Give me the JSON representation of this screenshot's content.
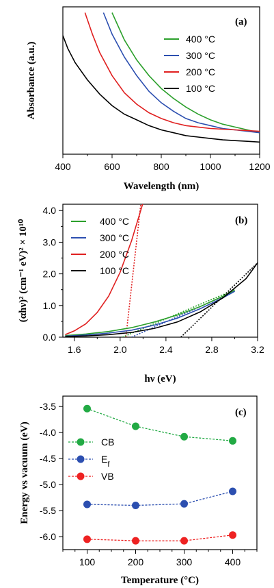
{
  "chart_data": [
    {
      "panel": "(a)",
      "type": "line",
      "xlabel": "Wavelength (nm)",
      "ylabel": "Absorbance (a.u.)",
      "xlim": [
        400,
        1200
      ],
      "ylim": [
        0,
        1
      ],
      "xticks": [
        "400",
        "600",
        "800",
        "1000",
        "1200"
      ],
      "legend_position": "top-right",
      "series": [
        {
          "name": "400 °C",
          "color": "#2ca02c",
          "x": [
            600,
            650,
            700,
            750,
            800,
            850,
            900,
            950,
            1000,
            1050,
            1100,
            1150,
            1200
          ],
          "y": [
            0.99,
            0.8,
            0.66,
            0.55,
            0.46,
            0.39,
            0.33,
            0.28,
            0.24,
            0.21,
            0.19,
            0.17,
            0.15
          ]
        },
        {
          "name": "300 °C",
          "color": "#2c4fb0",
          "x": [
            565,
            600,
            650,
            700,
            750,
            800,
            850,
            900,
            950,
            1000,
            1050,
            1100,
            1150,
            1200
          ],
          "y": [
            0.99,
            0.84,
            0.68,
            0.55,
            0.44,
            0.36,
            0.3,
            0.25,
            0.22,
            0.2,
            0.18,
            0.17,
            0.16,
            0.15
          ]
        },
        {
          "name": "200 °C",
          "color": "#e02020",
          "x": [
            490,
            520,
            550,
            600,
            650,
            700,
            750,
            800,
            850,
            900,
            950,
            1000,
            1050,
            1100,
            1150,
            1200
          ],
          "y": [
            0.99,
            0.84,
            0.71,
            0.55,
            0.43,
            0.35,
            0.29,
            0.25,
            0.22,
            0.2,
            0.19,
            0.18,
            0.175,
            0.17,
            0.165,
            0.16
          ]
        },
        {
          "name": "100 °C",
          "color": "#000000",
          "x": [
            400,
            420,
            450,
            500,
            550,
            600,
            650,
            700,
            750,
            800,
            850,
            900,
            950,
            1000,
            1050,
            1100,
            1150,
            1200
          ],
          "y": [
            0.83,
            0.74,
            0.64,
            0.52,
            0.42,
            0.34,
            0.28,
            0.24,
            0.2,
            0.17,
            0.15,
            0.13,
            0.12,
            0.11,
            0.1,
            0.095,
            0.09,
            0.085
          ]
        }
      ]
    },
    {
      "panel": "(b)",
      "type": "line",
      "xlabel": "hν (eV)",
      "ylabel": "(αhν)² (cm⁻¹ eV)² × 10¹⁰",
      "xlim": [
        1.5,
        3.2
      ],
      "ylim": [
        0,
        4.2
      ],
      "xticks": [
        "1.6",
        "2.0",
        "2.4",
        "2.8",
        "3.2"
      ],
      "yticks": [
        "0.0",
        "1.0",
        "2.0",
        "3.0",
        "4.0"
      ],
      "legend_position": "top-left",
      "series": [
        {
          "name": "400 °C",
          "color": "#2ca02c",
          "x": [
            1.52,
            1.7,
            1.9,
            2.1,
            2.3,
            2.5,
            2.7,
            2.9,
            3.0
          ],
          "y": [
            0.05,
            0.1,
            0.18,
            0.3,
            0.48,
            0.7,
            0.97,
            1.3,
            1.48
          ]
        },
        {
          "name": "300 °C",
          "color": "#2c4fb0",
          "x": [
            1.52,
            1.7,
            1.9,
            2.1,
            2.3,
            2.5,
            2.7,
            2.9,
            3.0
          ],
          "y": [
            0.03,
            0.07,
            0.13,
            0.22,
            0.38,
            0.6,
            0.9,
            1.25,
            1.45
          ]
        },
        {
          "name": "200 °C",
          "color": "#e02020",
          "x": [
            1.52,
            1.6,
            1.7,
            1.8,
            1.9,
            2.0,
            2.1,
            2.2
          ],
          "y": [
            0.08,
            0.2,
            0.42,
            0.78,
            1.3,
            2.05,
            3.05,
            4.25
          ]
        },
        {
          "name": "100 °C",
          "color": "#000000",
          "x": [
            1.52,
            1.7,
            1.9,
            2.1,
            2.3,
            2.5,
            2.7,
            2.9,
            3.1,
            3.2
          ],
          "y": [
            0.02,
            0.04,
            0.08,
            0.15,
            0.28,
            0.48,
            0.8,
            1.25,
            1.85,
            2.35
          ]
        }
      ],
      "fit_lines": [
        {
          "color": "#e02020",
          "x": [
            2.05,
            2.18
          ],
          "y": [
            0.0,
            4.2
          ]
        },
        {
          "color": "#2ca02c",
          "x": [
            2.02,
            3.0
          ],
          "y": [
            0.0,
            1.5
          ]
        },
        {
          "color": "#2c4fb0",
          "x": [
            2.1,
            3.0
          ],
          "y": [
            0.0,
            1.45
          ]
        },
        {
          "color": "#000000",
          "x": [
            2.53,
            3.2
          ],
          "y": [
            0.0,
            2.35
          ]
        }
      ]
    },
    {
      "panel": "(c)",
      "type": "scatter",
      "xlabel": "Temperature (°C)",
      "ylabel": "Energy vs vacuum (eV)",
      "xlim": [
        50,
        450
      ],
      "ylim": [
        -6.25,
        -3.3
      ],
      "xticks": [
        "100",
        "200",
        "300",
        "400"
      ],
      "yticks": [
        "-3.5",
        "-4.0",
        "-4.5",
        "-5.0",
        "-5.5",
        "-6.0"
      ],
      "legend_position": "center-left",
      "series": [
        {
          "name": "CB",
          "color": "#22aa44",
          "x": [
            100,
            200,
            300,
            400
          ],
          "y": [
            -3.54,
            -3.88,
            -4.08,
            -4.16
          ]
        },
        {
          "name": "Ef",
          "color": "#2c4fb0",
          "x": [
            100,
            200,
            300,
            400
          ],
          "y": [
            -5.38,
            -5.4,
            -5.37,
            -5.13
          ]
        },
        {
          "name": "VB",
          "color": "#ee2222",
          "x": [
            100,
            200,
            300,
            400
          ],
          "y": [
            -6.05,
            -6.08,
            -6.08,
            -5.97
          ]
        }
      ]
    }
  ]
}
